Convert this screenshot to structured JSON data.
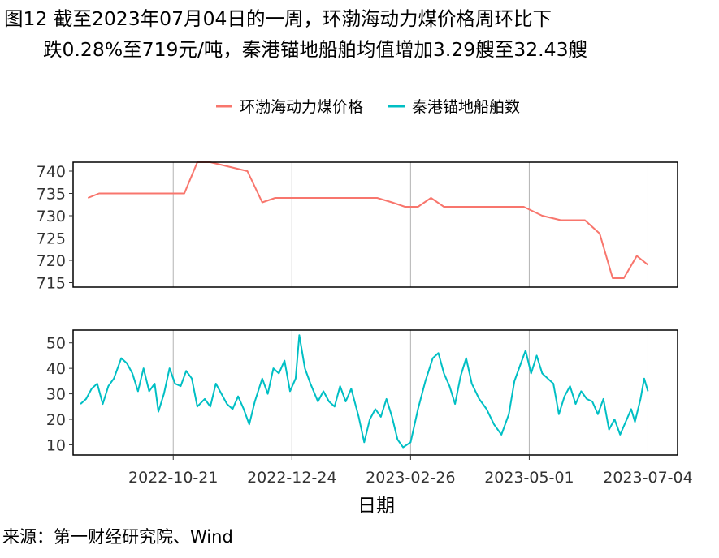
{
  "title_line1": "图12  截至2023年07月04日的一周，环渤海动力煤价格周环比下",
  "title_line2": "跌0.28%至719元/吨，秦港锚地船舶均值增加3.29艘至32.43艘",
  "source": "来源：第一财经研究院、Wind",
  "colors": {
    "price": "#F8766D",
    "ships": "#00BFC4",
    "grid": "#b3b3b3",
    "frame": "#000000"
  },
  "chart_data": [
    {
      "type": "line",
      "xlabel": "日期",
      "ylabel": "",
      "x_tick_labels": [
        "2022-10-21",
        "2022-12-24",
        "2023-02-26",
        "2023-05-01",
        "2023-07-04"
      ],
      "xlim": [
        "2022-08-28",
        "2023-07-20"
      ],
      "ylim": [
        714,
        742
      ],
      "y_ticks": [
        715,
        720,
        725,
        730,
        735,
        740
      ],
      "grid": "vertical major only",
      "legend_position": "top",
      "series": [
        {
          "name": "环渤海动力煤价格",
          "color": "#F8766D",
          "points": [
            [
              "2022-09-05",
              734
            ],
            [
              "2022-09-11",
              735
            ],
            [
              "2022-10-10",
              735
            ],
            [
              "2022-10-27",
              735
            ],
            [
              "2022-11-03",
              742
            ],
            [
              "2022-11-10",
              742
            ],
            [
              "2022-11-30",
              740
            ],
            [
              "2022-12-08",
              733
            ],
            [
              "2022-12-15",
              734
            ],
            [
              "2023-01-02",
              734
            ],
            [
              "2023-02-08",
              734
            ],
            [
              "2023-02-16",
              733
            ],
            [
              "2023-02-23",
              732
            ],
            [
              "2023-03-02",
              732
            ],
            [
              "2023-03-09",
              734
            ],
            [
              "2023-03-16",
              732
            ],
            [
              "2023-04-03",
              732
            ],
            [
              "2023-04-28",
              732
            ],
            [
              "2023-05-08",
              730
            ],
            [
              "2023-05-18",
              729
            ],
            [
              "2023-05-31",
              729
            ],
            [
              "2023-06-08",
              726
            ],
            [
              "2023-06-15",
              716
            ],
            [
              "2023-06-21",
              716
            ],
            [
              "2023-06-28",
              721
            ],
            [
              "2023-07-04",
              719
            ]
          ]
        }
      ]
    },
    {
      "type": "line",
      "xlabel": "日期",
      "ylabel": "",
      "x_tick_labels": [
        "2022-10-21",
        "2022-12-24",
        "2023-02-26",
        "2023-05-01",
        "2023-07-04"
      ],
      "xlim": [
        "2022-08-28",
        "2023-07-20"
      ],
      "ylim": [
        6,
        55
      ],
      "y_ticks": [
        10,
        20,
        30,
        40,
        50
      ],
      "grid": "vertical major only",
      "series": [
        {
          "name": "秦港锚地船舶数",
          "color": "#00BFC4",
          "points": [
            [
              "2022-09-01",
              26
            ],
            [
              "2022-09-04",
              28
            ],
            [
              "2022-09-07",
              32
            ],
            [
              "2022-09-10",
              34
            ],
            [
              "2022-09-13",
              26
            ],
            [
              "2022-09-16",
              33
            ],
            [
              "2022-09-19",
              36
            ],
            [
              "2022-09-23",
              44
            ],
            [
              "2022-09-26",
              42
            ],
            [
              "2022-09-29",
              38
            ],
            [
              "2022-10-02",
              31
            ],
            [
              "2022-10-05",
              40
            ],
            [
              "2022-10-08",
              31
            ],
            [
              "2022-10-11",
              34
            ],
            [
              "2022-10-13",
              23
            ],
            [
              "2022-10-16",
              30
            ],
            [
              "2022-10-19",
              40
            ],
            [
              "2022-10-22",
              34
            ],
            [
              "2022-10-25",
              33
            ],
            [
              "2022-10-28",
              39
            ],
            [
              "2022-10-31",
              36
            ],
            [
              "2022-11-03",
              25
            ],
            [
              "2022-11-07",
              28
            ],
            [
              "2022-11-10",
              25
            ],
            [
              "2022-11-13",
              34
            ],
            [
              "2022-11-16",
              30
            ],
            [
              "2022-11-19",
              26
            ],
            [
              "2022-11-22",
              24
            ],
            [
              "2022-11-25",
              29
            ],
            [
              "2022-11-28",
              24
            ],
            [
              "2022-12-01",
              18
            ],
            [
              "2022-12-04",
              27
            ],
            [
              "2022-12-08",
              36
            ],
            [
              "2022-12-11",
              30
            ],
            [
              "2022-12-14",
              40
            ],
            [
              "2022-12-17",
              38
            ],
            [
              "2022-12-20",
              43
            ],
            [
              "2022-12-23",
              31
            ],
            [
              "2022-12-26",
              36
            ],
            [
              "2022-12-28",
              53
            ],
            [
              "2022-12-31",
              40
            ],
            [
              "2023-01-03",
              34
            ],
            [
              "2023-01-07",
              27
            ],
            [
              "2023-01-10",
              31
            ],
            [
              "2023-01-13",
              27
            ],
            [
              "2023-01-16",
              25
            ],
            [
              "2023-01-19",
              33
            ],
            [
              "2023-01-22",
              27
            ],
            [
              "2023-01-25",
              32
            ],
            [
              "2023-01-29",
              21
            ],
            [
              "2023-02-01",
              11
            ],
            [
              "2023-02-04",
              20
            ],
            [
              "2023-02-07",
              24
            ],
            [
              "2023-02-10",
              21
            ],
            [
              "2023-02-13",
              28
            ],
            [
              "2023-02-16",
              21
            ],
            [
              "2023-02-19",
              12
            ],
            [
              "2023-02-22",
              9
            ],
            [
              "2023-02-26",
              11
            ],
            [
              "2023-03-02",
              24
            ],
            [
              "2023-03-06",
              35
            ],
            [
              "2023-03-10",
              44
            ],
            [
              "2023-03-13",
              46
            ],
            [
              "2023-03-16",
              38
            ],
            [
              "2023-03-19",
              33
            ],
            [
              "2023-03-22",
              26
            ],
            [
              "2023-03-25",
              37
            ],
            [
              "2023-03-28",
              44
            ],
            [
              "2023-03-31",
              34
            ],
            [
              "2023-04-04",
              28
            ],
            [
              "2023-04-08",
              24
            ],
            [
              "2023-04-12",
              18
            ],
            [
              "2023-04-16",
              14
            ],
            [
              "2023-04-20",
              22
            ],
            [
              "2023-04-23",
              35
            ],
            [
              "2023-04-26",
              41
            ],
            [
              "2023-04-29",
              47
            ],
            [
              "2023-05-02",
              38
            ],
            [
              "2023-05-05",
              45
            ],
            [
              "2023-05-08",
              38
            ],
            [
              "2023-05-11",
              36
            ],
            [
              "2023-05-14",
              34
            ],
            [
              "2023-05-17",
              22
            ],
            [
              "2023-05-20",
              29
            ],
            [
              "2023-05-23",
              33
            ],
            [
              "2023-05-26",
              26
            ],
            [
              "2023-05-29",
              31
            ],
            [
              "2023-06-01",
              28
            ],
            [
              "2023-06-04",
              27
            ],
            [
              "2023-06-07",
              22
            ],
            [
              "2023-06-10",
              28
            ],
            [
              "2023-06-13",
              16
            ],
            [
              "2023-06-16",
              20
            ],
            [
              "2023-06-19",
              14
            ],
            [
              "2023-06-22",
              19
            ],
            [
              "2023-06-25",
              24
            ],
            [
              "2023-06-27",
              19
            ],
            [
              "2023-06-30",
              28
            ],
            [
              "2023-07-02",
              36
            ],
            [
              "2023-07-04",
              31
            ]
          ]
        }
      ]
    }
  ]
}
